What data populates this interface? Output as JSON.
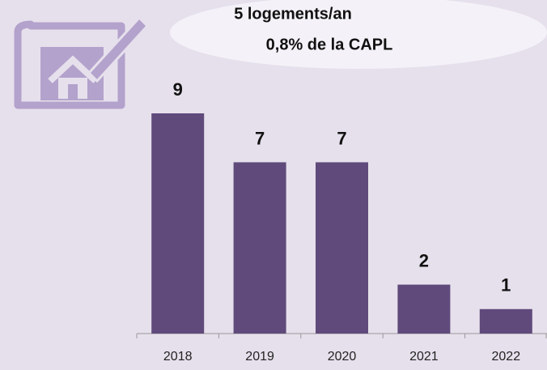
{
  "chart_data": {
    "type": "bar",
    "annotations": [
      "5 logements/an",
      "0,8% de la CAPL"
    ],
    "categories": [
      "2018",
      "2019",
      "2020",
      "2021",
      "2022"
    ],
    "values": [
      9,
      7,
      7,
      2,
      1
    ],
    "color": "#604a7b"
  }
}
